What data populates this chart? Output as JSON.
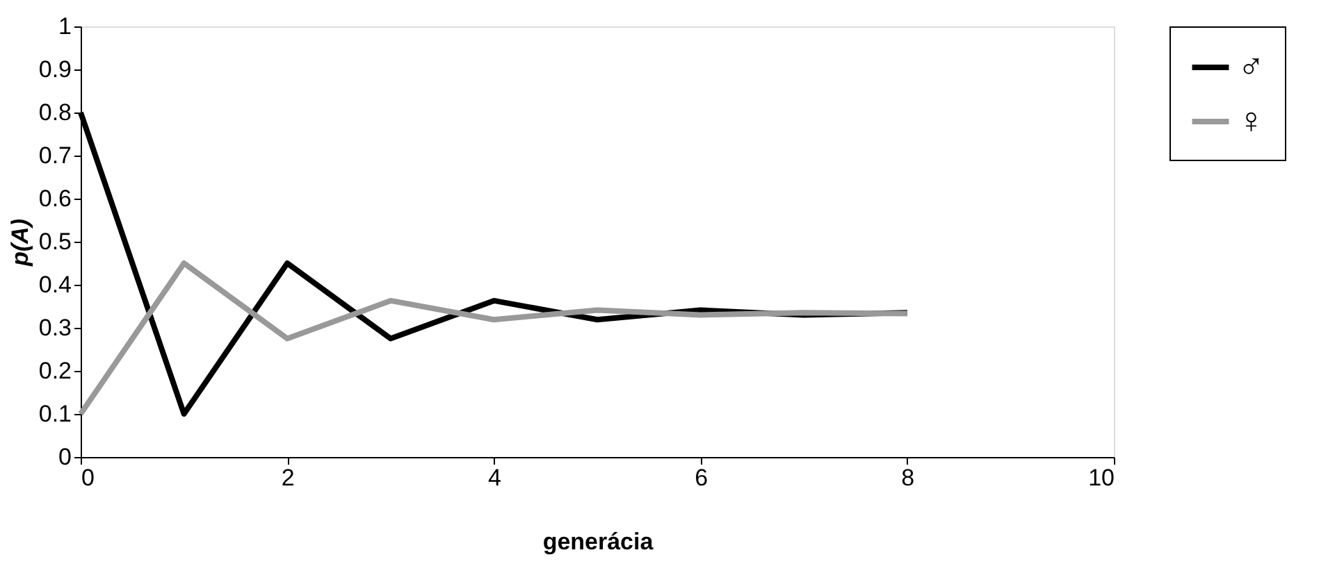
{
  "chart_data": {
    "type": "line",
    "xlabel": "generácia",
    "ylabel": "p(A)",
    "x": [
      0,
      1,
      2,
      3,
      4,
      5,
      6,
      7,
      8
    ],
    "series": [
      {
        "name": "♂",
        "color": "#000000",
        "values": [
          0.8,
          0.1,
          0.45,
          0.275,
          0.363,
          0.319,
          0.341,
          0.33,
          0.335
        ]
      },
      {
        "name": "♀",
        "color": "#999999",
        "values": [
          0.1,
          0.45,
          0.275,
          0.363,
          0.319,
          0.341,
          0.33,
          0.335,
          0.333
        ]
      }
    ],
    "xlim": [
      0,
      10
    ],
    "xticks": [
      0,
      2,
      4,
      6,
      8,
      10
    ],
    "ylim": [
      0,
      1
    ],
    "yticks": [
      0,
      0.1,
      0.2,
      0.3,
      0.4,
      0.5,
      0.6,
      0.7,
      0.8,
      0.9,
      1
    ],
    "grid": false,
    "legend": "right",
    "marker": "none",
    "line_style": "solid"
  }
}
